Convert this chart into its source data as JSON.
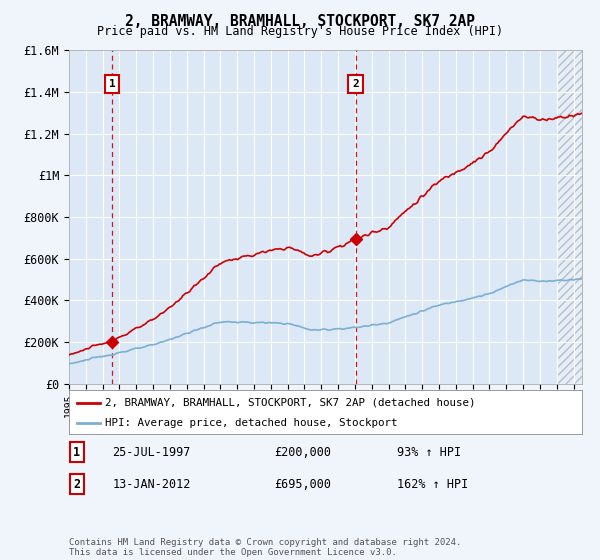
{
  "title": "2, BRAMWAY, BRAMHALL, STOCKPORT, SK7 2AP",
  "subtitle": "Price paid vs. HM Land Registry's House Price Index (HPI)",
  "legend_line1": "2, BRAMWAY, BRAMHALL, STOCKPORT, SK7 2AP (detached house)",
  "legend_line2": "HPI: Average price, detached house, Stockport",
  "annotation1_label": "1",
  "annotation1_date": "25-JUL-1997",
  "annotation1_price": "£200,000",
  "annotation1_hpi": "93% ↑ HPI",
  "annotation2_label": "2",
  "annotation2_date": "13-JAN-2012",
  "annotation2_price": "£695,000",
  "annotation2_hpi": "162% ↑ HPI",
  "footnote": "Contains HM Land Registry data © Crown copyright and database right 2024.\nThis data is licensed under the Open Government Licence v3.0.",
  "sale1_year": 1997.56,
  "sale1_price": 200000,
  "sale2_year": 2012.04,
  "sale2_price": 695000,
  "hpi_color": "#7bafd4",
  "price_color": "#cc0000",
  "dashed_color": "#cc0000",
  "background_color": "#f0f4fb",
  "plot_bg_color": "#dce8f5",
  "plot_bg_color2": "#e8eef5",
  "grid_color": "#ffffff",
  "ylim": [
    0,
    1600000
  ],
  "xlim_start": 1995.0,
  "xlim_end": 2025.5,
  "hatch_start": 2024.0
}
